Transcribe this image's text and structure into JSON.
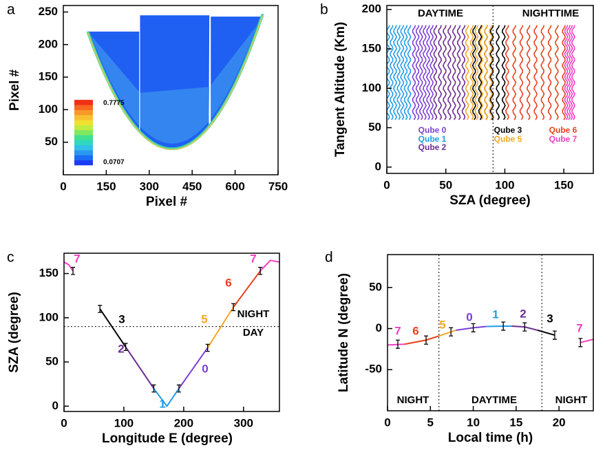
{
  "chart_data": [
    {
      "type": "image",
      "panel_label": "a",
      "x_label": "Pixel #",
      "y_label": "Pixel #",
      "xlim": [
        0,
        750
      ],
      "ylim": [
        0,
        260
      ],
      "xticks": [
        0,
        150,
        300,
        450,
        600,
        750
      ],
      "yticks": [
        50,
        100,
        150,
        200,
        250
      ],
      "colorbar_range": [
        0.0707,
        0.7775
      ]
    },
    {
      "type": "profiles",
      "panel_label": "b",
      "x_label": "SZA (degree)",
      "y_label": "Tangent Altitude (Km)",
      "xlim": [
        0,
        175
      ],
      "ylim": [
        -8,
        205
      ],
      "xticks": [
        0,
        50,
        100,
        150
      ],
      "yticks": [
        0,
        50,
        100,
        150,
        200
      ],
      "altitude_range": [
        60,
        180
      ],
      "vlines": [
        90
      ],
      "annotations": [
        "DAYTIME",
        "NIGHTTIME"
      ],
      "series": [
        {
          "name": "Qube 0",
          "color": "#7b3fd6",
          "x": [
            23,
            26,
            29,
            32,
            35,
            38
          ]
        },
        {
          "name": "Qube 1",
          "color": "#1e9be8",
          "x": [
            1,
            4,
            7,
            10,
            13,
            16,
            19
          ]
        },
        {
          "name": "Qube 2",
          "color": "#6a2c91",
          "x": [
            41,
            45,
            49,
            53,
            57,
            61,
            65
          ]
        },
        {
          "name": "Qube 3",
          "color": "#000000",
          "x": [
            74,
            79,
            84,
            89,
            94,
            99
          ]
        },
        {
          "name": "Qube 5",
          "color": "#f5a623",
          "x": [
            68,
            72,
            76,
            80,
            84,
            88
          ]
        },
        {
          "name": "Qube 6",
          "color": "#e8401c",
          "x": [
            102,
            108,
            114,
            120,
            126,
            132,
            138,
            144,
            150
          ]
        },
        {
          "name": "Qube 7",
          "color": "#f03fc0",
          "x": [
            152,
            154,
            156,
            158
          ]
        }
      ]
    },
    {
      "type": "line",
      "panel_label": "c",
      "x_label": "Longitude E (degree)",
      "y_label": "SZA (degree)",
      "xlim": [
        0,
        360
      ],
      "ylim": [
        -6,
        173
      ],
      "xticks": [
        0,
        100,
        200,
        300
      ],
      "yticks": [
        0,
        50,
        100,
        150
      ],
      "hlines": [
        90
      ],
      "annotations": [
        "NIGHT",
        "DAY"
      ],
      "series": [
        {
          "name": "7",
          "color": "#f03fc0",
          "x": [
            0,
            8,
            15
          ],
          "values": [
            163,
            160,
            153
          ]
        },
        {
          "name": "3",
          "color": "#000000",
          "x": [
            60,
            103
          ],
          "values": [
            110,
            67
          ]
        },
        {
          "name": "2",
          "color": "#6a2c91",
          "x": [
            103,
            150
          ],
          "values": [
            67,
            20
          ]
        },
        {
          "name": "1",
          "color": "#1e9be8",
          "x": [
            150,
            172,
            192
          ],
          "values": [
            20,
            0,
            20
          ]
        },
        {
          "name": "0",
          "color": "#7b3fd6",
          "x": [
            192,
            240
          ],
          "values": [
            20,
            66
          ]
        },
        {
          "name": "5",
          "color": "#f5a623",
          "x": [
            240,
            283
          ],
          "values": [
            66,
            112
          ]
        },
        {
          "name": "6",
          "color": "#e8401c",
          "x": [
            283,
            328
          ],
          "values": [
            112,
            153
          ]
        },
        {
          "name": "7",
          "color": "#f03fc0",
          "x": [
            328,
            345,
            360
          ],
          "values": [
            153,
            165,
            163
          ]
        }
      ],
      "error_bars": {
        "x": [
          15,
          60,
          103,
          150,
          192,
          240,
          283,
          328
        ],
        "values": [
          153,
          110,
          67,
          20,
          20,
          66,
          112,
          153
        ],
        "errors": [
          4,
          4,
          4,
          4,
          4,
          4,
          4,
          4
        ]
      }
    },
    {
      "type": "line",
      "panel_label": "d",
      "x_label": "Local time (h)",
      "y_label": "Latitude N (degree)",
      "xlim": [
        0,
        24
      ],
      "ylim": [
        -100,
        90
      ],
      "xticks": [
        0,
        5,
        10,
        15,
        20
      ],
      "yticks": [
        -50,
        0,
        50
      ],
      "vlines": [
        6,
        18
      ],
      "annotations": [
        "NIGHT",
        "DAYTIME",
        "NIGHT"
      ],
      "series": [
        {
          "name": "7",
          "color": "#f03fc0",
          "x": [
            0,
            2
          ],
          "values": [
            -20,
            -19
          ]
        },
        {
          "name": "6",
          "color": "#e8401c",
          "x": [
            2,
            4.5,
            6
          ],
          "values": [
            -19,
            -14,
            -9
          ]
        },
        {
          "name": "5",
          "color": "#f5a623",
          "x": [
            6,
            7.4,
            8
          ],
          "values": [
            -9,
            -4,
            -2
          ]
        },
        {
          "name": "0",
          "color": "#7b3fd6",
          "x": [
            8,
            10,
            11.5
          ],
          "values": [
            -2,
            1,
            2.5
          ]
        },
        {
          "name": "1",
          "color": "#1e9be8",
          "x": [
            11.5,
            13.5,
            14.5
          ],
          "values": [
            2.5,
            3,
            3
          ]
        },
        {
          "name": "2",
          "color": "#6a2c91",
          "x": [
            14.5,
            16,
            17.5
          ],
          "values": [
            3,
            2,
            -2
          ]
        },
        {
          "name": "3",
          "color": "#000000",
          "x": [
            17.5,
            19.5
          ],
          "values": [
            -2,
            -8
          ]
        },
        {
          "name": "7",
          "color": "#f03fc0",
          "x": [
            22.5,
            24
          ],
          "values": [
            -17,
            -13
          ]
        }
      ],
      "error_bars": {
        "x": [
          1.2,
          4.5,
          7.4,
          10,
          13.5,
          16,
          19.5,
          22.5
        ],
        "values": [
          -19,
          -14,
          -4,
          1,
          3,
          2,
          -8,
          -17
        ],
        "errors": [
          5,
          5,
          5,
          5,
          5,
          5,
          5,
          5
        ]
      }
    }
  ]
}
